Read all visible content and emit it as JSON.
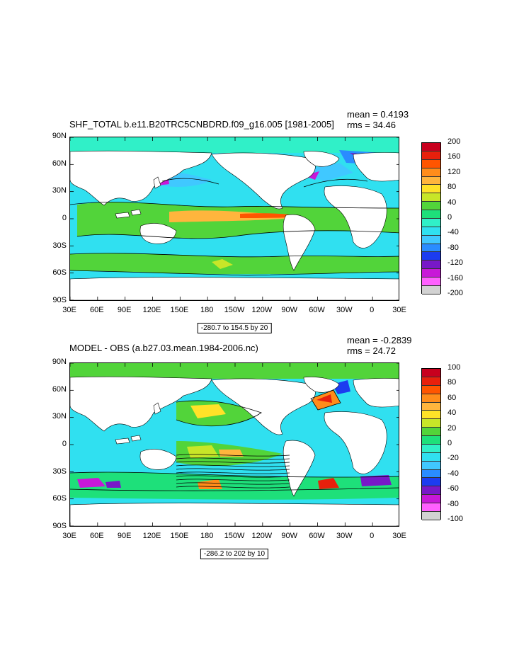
{
  "panels": [
    {
      "title": "SHF_TOTAL b.e11.B20TRC5CNBDRD.f09_g16.005 [1981-2005]",
      "mean_label": "mean = 0.4193",
      "rms_label": "rms = 34.46",
      "range_label": "-280.7 to 154.5 by 20",
      "lat_labels": [
        "90N",
        "60N",
        "30N",
        "0",
        "30S",
        "60S",
        "90S"
      ],
      "lon_labels": [
        "30E",
        "60E",
        "90E",
        "120E",
        "150E",
        "180",
        "150W",
        "120W",
        "90W",
        "60W",
        "30W",
        "0",
        "30E"
      ],
      "colorbar_labels": [
        "200",
        "160",
        "120",
        "80",
        "40",
        "0",
        "-40",
        "-80",
        "-120",
        "-160",
        "-200"
      ]
    },
    {
      "title": "MODEL - OBS (a.b27.03.mean.1984-2006.nc)",
      "mean_label": "mean = -0.2839",
      "rms_label": "rms = 24.72",
      "range_label": "-286.2 to 202 by 10",
      "lat_labels": [
        "90N",
        "60N",
        "30N",
        "0",
        "30S",
        "60S",
        "90S"
      ],
      "lon_labels": [
        "30E",
        "60E",
        "90E",
        "120E",
        "150E",
        "180",
        "150W",
        "120W",
        "90W",
        "60W",
        "30W",
        "0",
        "30E"
      ],
      "colorbar_labels": [
        "100",
        "80",
        "60",
        "40",
        "20",
        "0",
        "-20",
        "-40",
        "-60",
        "-80",
        "-100"
      ]
    }
  ],
  "colormap": [
    "#c8001e",
    "#e8200c",
    "#ff5500",
    "#ff8c1a",
    "#ffb53d",
    "#ffe228",
    "#c8e628",
    "#52d43a",
    "#1ee07a",
    "#30f0c8",
    "#30e0f0",
    "#40c8ff",
    "#2a8cff",
    "#1c3cf0",
    "#7818c8",
    "#c818d8",
    "#ff60ff",
    "#d2d2d2",
    "#7a7a7a"
  ]
}
